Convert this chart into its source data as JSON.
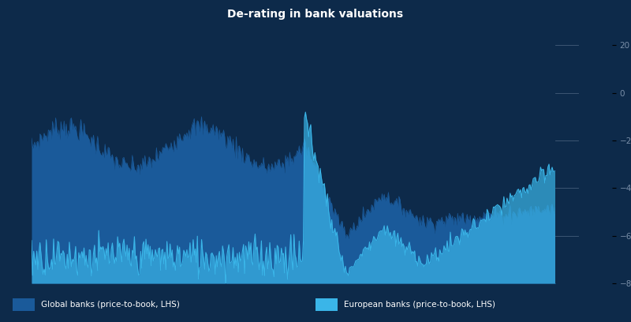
{
  "title": "De-rating in bank valuations",
  "bg_color": "#0d2a4a",
  "title_bar_color": "#1a4a7a",
  "plot_bg_color": "#0d2a4a",
  "outer_bg": "#0d2a4a",
  "series1_color": "#1a5a9a",
  "series2_color": "#3ab5e8",
  "series2_light": "#7fd4f0",
  "legend_bar_color": "#1a5ab0",
  "right_tick_color": "#7a8fa8",
  "series1_label": "Global banks (price-to-book, LHS)",
  "series2_label": "European banks (price-to-book, LHS)",
  "ylim_left": [
    0.0,
    3.5
  ],
  "ylim_right": [
    -80,
    20
  ],
  "n_points": 500
}
